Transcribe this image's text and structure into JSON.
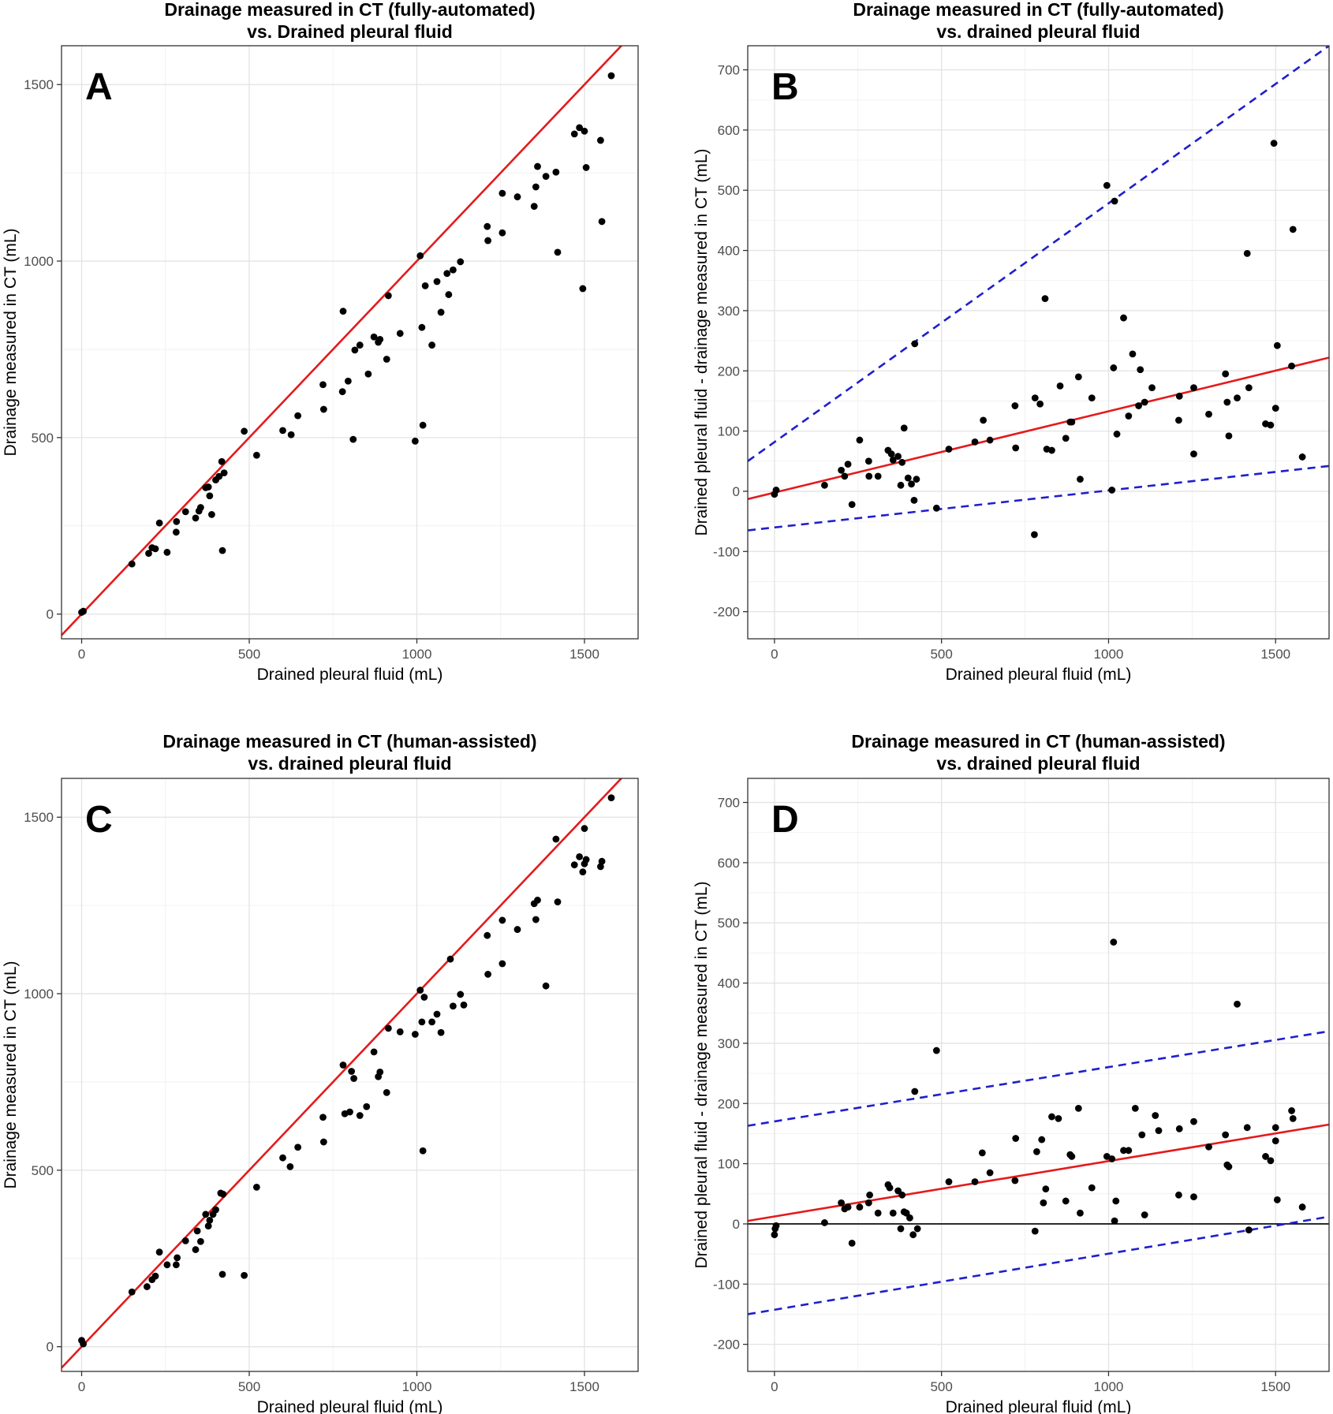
{
  "chart_data": [
    {
      "panel": "A",
      "type": "scatter",
      "title": "Drainage measured in CT (fully-automated)\nvs. Drained pleural fluid",
      "xlabel": "Drained pleural fluid (mL)",
      "ylabel": "Drainage measured in CT (mL)",
      "xlim": [
        -60,
        1660
      ],
      "ylim": [
        -70,
        1610
      ],
      "xticks": [
        0,
        500,
        1000,
        1500
      ],
      "yticks": [
        0,
        500,
        1000,
        1500
      ],
      "grid": true,
      "lines": [
        {
          "style": "solid",
          "color": "#e41a1c",
          "x": [
            -60,
            1660
          ],
          "y": [
            -60,
            1660
          ]
        }
      ],
      "points": [
        [
          0,
          5
        ],
        [
          5,
          8
        ],
        [
          150,
          142
        ],
        [
          200,
          172
        ],
        [
          210,
          188
        ],
        [
          220,
          185
        ],
        [
          232,
          258
        ],
        [
          255,
          175
        ],
        [
          282,
          232
        ],
        [
          283,
          262
        ],
        [
          310,
          290
        ],
        [
          340,
          272
        ],
        [
          350,
          292
        ],
        [
          355,
          302
        ],
        [
          370,
          358
        ],
        [
          378,
          360
        ],
        [
          382,
          335
        ],
        [
          388,
          282
        ],
        [
          400,
          380
        ],
        [
          410,
          390
        ],
        [
          418,
          432
        ],
        [
          420,
          180
        ],
        [
          425,
          400
        ],
        [
          485,
          518
        ],
        [
          522,
          450
        ],
        [
          600,
          520
        ],
        [
          625,
          508
        ],
        [
          645,
          562
        ],
        [
          720,
          650
        ],
        [
          722,
          580
        ],
        [
          778,
          630
        ],
        [
          780,
          858
        ],
        [
          795,
          660
        ],
        [
          810,
          495
        ],
        [
          815,
          748
        ],
        [
          830,
          762
        ],
        [
          855,
          680
        ],
        [
          872,
          785
        ],
        [
          885,
          770
        ],
        [
          890,
          778
        ],
        [
          910,
          722
        ],
        [
          915,
          902
        ],
        [
          950,
          795
        ],
        [
          995,
          490
        ],
        [
          1010,
          1015
        ],
        [
          1015,
          812
        ],
        [
          1018,
          535
        ],
        [
          1025,
          930
        ],
        [
          1045,
          762
        ],
        [
          1060,
          942
        ],
        [
          1072,
          855
        ],
        [
          1090,
          965
        ],
        [
          1095,
          905
        ],
        [
          1108,
          975
        ],
        [
          1130,
          998
        ],
        [
          1210,
          1098
        ],
        [
          1212,
          1058
        ],
        [
          1255,
          1080
        ],
        [
          1255,
          1192
        ],
        [
          1300,
          1182
        ],
        [
          1350,
          1155
        ],
        [
          1355,
          1210
        ],
        [
          1360,
          1268
        ],
        [
          1385,
          1240
        ],
        [
          1415,
          1252
        ],
        [
          1420,
          1025
        ],
        [
          1470,
          1360
        ],
        [
          1485,
          1378
        ],
        [
          1495,
          922
        ],
        [
          1500,
          1368
        ],
        [
          1505,
          1265
        ],
        [
          1548,
          1342
        ],
        [
          1552,
          1112
        ],
        [
          1580,
          1525
        ]
      ]
    },
    {
      "panel": "B",
      "type": "scatter",
      "title": "Drainage measured in CT (fully-automated)\nvs. drained pleural fluid",
      "xlabel": "Drained pleural fluid (mL)",
      "ylabel": "Drained pleural fluid - drainage measured in CT (mL)",
      "xlim": [
        -80,
        1660
      ],
      "ylim": [
        -245,
        740
      ],
      "xticks": [
        0,
        500,
        1000,
        1500
      ],
      "yticks": [
        -200,
        -100,
        0,
        100,
        200,
        300,
        400,
        500,
        600,
        700
      ],
      "grid": true,
      "lines": [
        {
          "style": "solid",
          "color": "#e41a1c",
          "x": [
            -80,
            1660
          ],
          "y": [
            -13,
            222
          ]
        },
        {
          "style": "dashed",
          "color": "#1f1fcc",
          "x": [
            -80,
            1660
          ],
          "y": [
            50,
            740
          ]
        },
        {
          "style": "dashed",
          "color": "#1f1fcc",
          "x": [
            -80,
            1660
          ],
          "y": [
            -65,
            42
          ]
        }
      ],
      "points": [
        [
          0,
          -5
        ],
        [
          5,
          2
        ],
        [
          150,
          10
        ],
        [
          200,
          35
        ],
        [
          210,
          25
        ],
        [
          220,
          45
        ],
        [
          232,
          -22
        ],
        [
          255,
          85
        ],
        [
          282,
          50
        ],
        [
          283,
          25
        ],
        [
          310,
          25
        ],
        [
          340,
          68
        ],
        [
          350,
          62
        ],
        [
          355,
          52
        ],
        [
          370,
          58
        ],
        [
          378,
          10
        ],
        [
          382,
          48
        ],
        [
          388,
          105
        ],
        [
          400,
          22
        ],
        [
          410,
          12
        ],
        [
          418,
          -15
        ],
        [
          420,
          245
        ],
        [
          425,
          20
        ],
        [
          485,
          -28
        ],
        [
          522,
          70
        ],
        [
          600,
          82
        ],
        [
          625,
          118
        ],
        [
          645,
          85
        ],
        [
          720,
          142
        ],
        [
          722,
          72
        ],
        [
          778,
          -72
        ],
        [
          780,
          155
        ],
        [
          795,
          145
        ],
        [
          810,
          320
        ],
        [
          815,
          70
        ],
        [
          830,
          68
        ],
        [
          855,
          175
        ],
        [
          872,
          88
        ],
        [
          885,
          115
        ],
        [
          890,
          115
        ],
        [
          910,
          190
        ],
        [
          915,
          20
        ],
        [
          950,
          155
        ],
        [
          995,
          508
        ],
        [
          1010,
          2
        ],
        [
          1015,
          205
        ],
        [
          1018,
          482
        ],
        [
          1025,
          95
        ],
        [
          1045,
          288
        ],
        [
          1060,
          125
        ],
        [
          1072,
          228
        ],
        [
          1090,
          142
        ],
        [
          1095,
          202
        ],
        [
          1108,
          148
        ],
        [
          1130,
          172
        ],
        [
          1210,
          118
        ],
        [
          1212,
          158
        ],
        [
          1255,
          62
        ],
        [
          1255,
          172
        ],
        [
          1300,
          128
        ],
        [
          1350,
          195
        ],
        [
          1355,
          148
        ],
        [
          1360,
          92
        ],
        [
          1385,
          155
        ],
        [
          1415,
          395
        ],
        [
          1420,
          172
        ],
        [
          1470,
          112
        ],
        [
          1485,
          110
        ],
        [
          1495,
          578
        ],
        [
          1500,
          138
        ],
        [
          1505,
          242
        ],
        [
          1548,
          208
        ],
        [
          1552,
          435
        ],
        [
          1580,
          57
        ]
      ]
    },
    {
      "panel": "C",
      "type": "scatter",
      "title": "Drainage measured in CT (human-assisted)\nvs. drained pleural fluid",
      "xlabel": "Drained pleural fluid (mL)",
      "ylabel": "Drainage measured in CT (mL)",
      "xlim": [
        -60,
        1660
      ],
      "ylim": [
        -70,
        1610
      ],
      "xticks": [
        0,
        500,
        1000,
        1500
      ],
      "yticks": [
        0,
        500,
        1000,
        1500
      ],
      "grid": true,
      "lines": [
        {
          "style": "solid",
          "color": "#e41a1c",
          "x": [
            -60,
            1660
          ],
          "y": [
            -60,
            1660
          ]
        }
      ],
      "points": [
        [
          0,
          18
        ],
        [
          5,
          8
        ],
        [
          150,
          155
        ],
        [
          195,
          170
        ],
        [
          210,
          190
        ],
        [
          220,
          200
        ],
        [
          232,
          268
        ],
        [
          255,
          232
        ],
        [
          282,
          232
        ],
        [
          285,
          252
        ],
        [
          310,
          300
        ],
        [
          340,
          275
        ],
        [
          345,
          328
        ],
        [
          355,
          298
        ],
        [
          370,
          375
        ],
        [
          378,
          342
        ],
        [
          382,
          358
        ],
        [
          392,
          375
        ],
        [
          400,
          388
        ],
        [
          415,
          435
        ],
        [
          420,
          205
        ],
        [
          422,
          432
        ],
        [
          485,
          202
        ],
        [
          522,
          452
        ],
        [
          600,
          535
        ],
        [
          622,
          510
        ],
        [
          645,
          565
        ],
        [
          720,
          650
        ],
        [
          722,
          580
        ],
        [
          780,
          798
        ],
        [
          785,
          660
        ],
        [
          800,
          665
        ],
        [
          805,
          780
        ],
        [
          812,
          760
        ],
        [
          830,
          655
        ],
        [
          850,
          680
        ],
        [
          872,
          835
        ],
        [
          885,
          765
        ],
        [
          890,
          778
        ],
        [
          910,
          720
        ],
        [
          915,
          902
        ],
        [
          950,
          892
        ],
        [
          995,
          885
        ],
        [
          1010,
          1010
        ],
        [
          1015,
          920
        ],
        [
          1018,
          555
        ],
        [
          1022,
          990
        ],
        [
          1045,
          920
        ],
        [
          1060,
          942
        ],
        [
          1072,
          890
        ],
        [
          1100,
          1098
        ],
        [
          1108,
          965
        ],
        [
          1130,
          998
        ],
        [
          1140,
          968
        ],
        [
          1210,
          1165
        ],
        [
          1212,
          1055
        ],
        [
          1255,
          1208
        ],
        [
          1255,
          1085
        ],
        [
          1300,
          1182
        ],
        [
          1350,
          1255
        ],
        [
          1355,
          1210
        ],
        [
          1360,
          1265
        ],
        [
          1385,
          1022
        ],
        [
          1415,
          1438
        ],
        [
          1420,
          1260
        ],
        [
          1470,
          1365
        ],
        [
          1485,
          1388
        ],
        [
          1495,
          1345
        ],
        [
          1500,
          1368
        ],
        [
          1500,
          1468
        ],
        [
          1505,
          1380
        ],
        [
          1548,
          1360
        ],
        [
          1552,
          1375
        ],
        [
          1580,
          1555
        ]
      ]
    },
    {
      "panel": "D",
      "type": "scatter",
      "title": "Drainage measured in CT (human-assisted)\nvs. drained pleural fluid",
      "xlabel": "Drained pleural fluid (mL)",
      "ylabel": "Drained pleural fluid - drainage measured in CT (mL)",
      "xlim": [
        -80,
        1660
      ],
      "ylim": [
        -245,
        740
      ],
      "xticks": [
        0,
        500,
        1000,
        1500
      ],
      "yticks": [
        -200,
        -100,
        0,
        100,
        200,
        300,
        400,
        500,
        600,
        700
      ],
      "grid": true,
      "reference_line_y": 0,
      "lines": [
        {
          "style": "solid",
          "color": "#e41a1c",
          "x": [
            -80,
            1660
          ],
          "y": [
            5,
            165
          ]
        },
        {
          "style": "dashed",
          "color": "#1f1fcc",
          "x": [
            -80,
            1660
          ],
          "y": [
            163,
            320
          ]
        },
        {
          "style": "dashed",
          "color": "#1f1fcc",
          "x": [
            -80,
            1660
          ],
          "y": [
            -150,
            12
          ]
        }
      ],
      "points": [
        [
          0,
          -18
        ],
        [
          2,
          -8
        ],
        [
          5,
          -3
        ],
        [
          150,
          2
        ],
        [
          200,
          35
        ],
        [
          210,
          25
        ],
        [
          220,
          28
        ],
        [
          232,
          -32
        ],
        [
          255,
          28
        ],
        [
          282,
          35
        ],
        [
          285,
          48
        ],
        [
          310,
          18
        ],
        [
          340,
          65
        ],
        [
          345,
          60
        ],
        [
          355,
          18
        ],
        [
          370,
          55
        ],
        [
          378,
          -8
        ],
        [
          382,
          48
        ],
        [
          388,
          20
        ],
        [
          395,
          18
        ],
        [
          405,
          10
        ],
        [
          415,
          -18
        ],
        [
          420,
          220
        ],
        [
          428,
          -8
        ],
        [
          485,
          288
        ],
        [
          522,
          70
        ],
        [
          600,
          70
        ],
        [
          622,
          118
        ],
        [
          645,
          85
        ],
        [
          720,
          72
        ],
        [
          722,
          142
        ],
        [
          780,
          -12
        ],
        [
          785,
          120
        ],
        [
          800,
          140
        ],
        [
          805,
          35
        ],
        [
          812,
          58
        ],
        [
          830,
          178
        ],
        [
          850,
          175
        ],
        [
          872,
          38
        ],
        [
          885,
          115
        ],
        [
          890,
          112
        ],
        [
          910,
          192
        ],
        [
          915,
          18
        ],
        [
          950,
          60
        ],
        [
          995,
          112
        ],
        [
          1010,
          108
        ],
        [
          1015,
          468
        ],
        [
          1018,
          5
        ],
        [
          1022,
          38
        ],
        [
          1045,
          122
        ],
        [
          1060,
          122
        ],
        [
          1080,
          192
        ],
        [
          1100,
          148
        ],
        [
          1108,
          15
        ],
        [
          1140,
          180
        ],
        [
          1150,
          155
        ],
        [
          1210,
          48
        ],
        [
          1212,
          158
        ],
        [
          1255,
          45
        ],
        [
          1255,
          170
        ],
        [
          1300,
          128
        ],
        [
          1350,
          148
        ],
        [
          1355,
          98
        ],
        [
          1360,
          95
        ],
        [
          1385,
          365
        ],
        [
          1415,
          160
        ],
        [
          1420,
          -10
        ],
        [
          1470,
          112
        ],
        [
          1485,
          105
        ],
        [
          1500,
          160
        ],
        [
          1500,
          138
        ],
        [
          1505,
          40
        ],
        [
          1548,
          188
        ],
        [
          1552,
          175
        ],
        [
          1580,
          28
        ]
      ]
    }
  ]
}
